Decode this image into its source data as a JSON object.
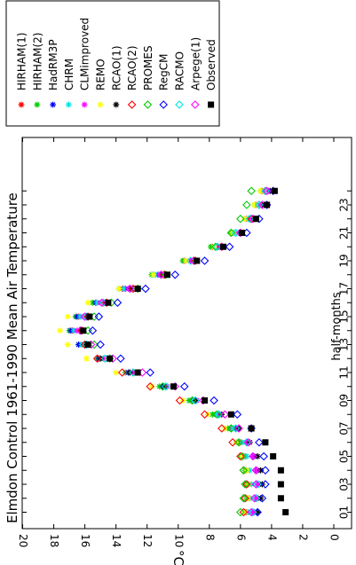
{
  "chart_data": {
    "type": "scatter",
    "title": "Elmdon Control 1961-1990 Mean Air Temperature",
    "xlabel": "half-months",
    "ylabel": "°C",
    "xlim": [
      0,
      24.5
    ],
    "ylim": [
      0,
      20
    ],
    "x_ticks": [
      "01",
      "03",
      "05",
      "07",
      "09",
      "11",
      "13",
      "15",
      "17",
      "19",
      "21",
      "23"
    ],
    "y_ticks": [
      "0",
      "2",
      "4",
      "6",
      "8",
      "10",
      "12",
      "14",
      "16",
      "18",
      "20"
    ],
    "orientation": "rotated-90-clockwise",
    "legend_position": "top-right",
    "x": [
      1,
      2,
      3,
      4,
      5,
      6,
      7,
      8,
      9,
      10,
      11,
      12,
      13,
      14,
      15,
      16,
      17,
      18,
      19,
      20,
      21,
      22,
      23,
      24
    ],
    "series": [
      {
        "name": "HIRHAM(1)",
        "color": "#ff0000",
        "marker": "asterisk",
        "values": [
          5.6,
          5.5,
          5.5,
          5.6,
          5.7,
          6.0,
          6.6,
          7.6,
          9.1,
          11.0,
          13.2,
          15.0,
          16.2,
          16.8,
          16.4,
          15.3,
          13.6,
          11.6,
          9.6,
          7.8,
          6.5,
          5.6,
          5.0,
          4.6
        ]
      },
      {
        "name": "HIRHAM(2)",
        "color": "#00cc00",
        "marker": "asterisk",
        "values": [
          5.7,
          5.6,
          5.6,
          5.7,
          5.8,
          6.2,
          6.8,
          7.8,
          9.3,
          11.2,
          13.4,
          15.2,
          16.4,
          17.0,
          16.6,
          15.5,
          13.8,
          11.7,
          9.7,
          7.9,
          6.6,
          5.7,
          5.1,
          4.7
        ]
      },
      {
        "name": "HadRM3P",
        "color": "#0000ff",
        "marker": "asterisk",
        "values": [
          5.1,
          4.9,
          4.8,
          4.9,
          5.1,
          5.6,
          6.3,
          7.4,
          9.0,
          11.0,
          13.2,
          15.1,
          16.4,
          16.9,
          16.5,
          15.3,
          13.4,
          11.3,
          9.2,
          7.4,
          6.1,
          5.1,
          4.5,
          4.1
        ]
      },
      {
        "name": "CHRM",
        "color": "#00e5e5",
        "marker": "asterisk",
        "values": [
          5.5,
          5.4,
          5.3,
          5.4,
          5.6,
          5.9,
          6.5,
          7.5,
          9.0,
          10.9,
          13.1,
          15.0,
          16.2,
          16.7,
          16.3,
          15.2,
          13.5,
          11.5,
          9.5,
          7.7,
          6.4,
          5.5,
          4.9,
          4.5
        ]
      },
      {
        "name": "CLMimproved",
        "color": "#ff00ff",
        "marker": "asterisk",
        "values": [
          5.2,
          5.0,
          4.9,
          5.0,
          5.2,
          5.6,
          6.2,
          7.3,
          8.8,
          10.7,
          12.9,
          14.8,
          16.0,
          16.5,
          16.1,
          15.0,
          13.2,
          11.2,
          9.2,
          7.4,
          6.1,
          5.2,
          4.6,
          4.2
        ]
      },
      {
        "name": "REMO",
        "color": "#ffff00",
        "marker": "asterisk",
        "values": [
          5.7,
          5.5,
          5.5,
          5.6,
          5.9,
          6.3,
          7.0,
          8.1,
          9.7,
          11.7,
          14.0,
          15.9,
          17.1,
          17.6,
          17.1,
          15.8,
          13.8,
          11.6,
          9.5,
          7.7,
          6.5,
          5.7,
          5.1,
          4.7
        ]
      },
      {
        "name": "RCAO(1)",
        "color": "#000000",
        "marker": "asterisk",
        "values": [
          4.9,
          4.7,
          4.6,
          4.7,
          4.9,
          5.4,
          6.1,
          7.2,
          8.9,
          10.9,
          13.1,
          15.0,
          16.0,
          16.2,
          15.8,
          14.7,
          13.0,
          11.0,
          9.0,
          7.3,
          6.0,
          5.1,
          4.5,
          4.1
        ]
      },
      {
        "name": "RCAO(2)",
        "color": "#ff0000",
        "marker": "diamond",
        "values": [
          5.8,
          5.7,
          5.6,
          5.8,
          6.0,
          6.5,
          7.2,
          8.3,
          9.9,
          11.8,
          13.6,
          15.2,
          16.0,
          16.2,
          15.8,
          14.6,
          12.9,
          10.9,
          8.9,
          7.2,
          6.0,
          5.3,
          4.8,
          4.4
        ]
      },
      {
        "name": "PROMES",
        "color": "#00cc00",
        "marker": "diamond",
        "values": [
          6.0,
          5.8,
          5.7,
          5.8,
          5.9,
          6.1,
          6.6,
          7.5,
          9.1,
          11.0,
          12.9,
          14.4,
          15.4,
          15.8,
          15.4,
          14.3,
          12.6,
          10.8,
          9.0,
          7.6,
          6.6,
          6.0,
          5.6,
          5.3
        ]
      },
      {
        "name": "RegCM",
        "color": "#0000ff",
        "marker": "diamond",
        "values": [
          4.9,
          4.6,
          4.4,
          4.4,
          4.5,
          4.8,
          5.3,
          6.2,
          7.7,
          9.6,
          11.8,
          13.7,
          15.0,
          15.5,
          15.1,
          13.9,
          12.1,
          10.2,
          8.3,
          6.7,
          5.6,
          4.8,
          4.3,
          3.9
        ]
      },
      {
        "name": "RACMO",
        "color": "#00e5e5",
        "marker": "diamond",
        "values": [
          5.2,
          5.0,
          4.9,
          5.0,
          5.2,
          5.6,
          6.3,
          7.4,
          8.9,
          10.8,
          12.9,
          14.7,
          15.9,
          16.3,
          15.9,
          14.8,
          13.1,
          11.1,
          9.2,
          7.5,
          6.3,
          5.4,
          4.8,
          4.4
        ]
      },
      {
        "name": "Arpege(1)",
        "color": "#ff00ff",
        "marker": "diamond",
        "values": [
          5.3,
          5.1,
          5.0,
          5.0,
          5.2,
          5.5,
          6.1,
          7.0,
          8.4,
          10.2,
          12.3,
          14.2,
          15.6,
          16.3,
          16.0,
          14.9,
          13.1,
          11.1,
          9.0,
          7.2,
          6.0,
          5.2,
          4.6,
          4.3
        ]
      },
      {
        "name": "Observed",
        "color": "#000000",
        "marker": "square",
        "values": [
          3.1,
          3.4,
          3.4,
          3.4,
          3.9,
          4.4,
          5.3,
          6.6,
          8.3,
          10.3,
          12.6,
          14.4,
          15.8,
          16.1,
          15.7,
          14.5,
          12.6,
          10.7,
          8.8,
          7.1,
          5.9,
          5.0,
          4.3,
          3.8
        ]
      }
    ]
  }
}
